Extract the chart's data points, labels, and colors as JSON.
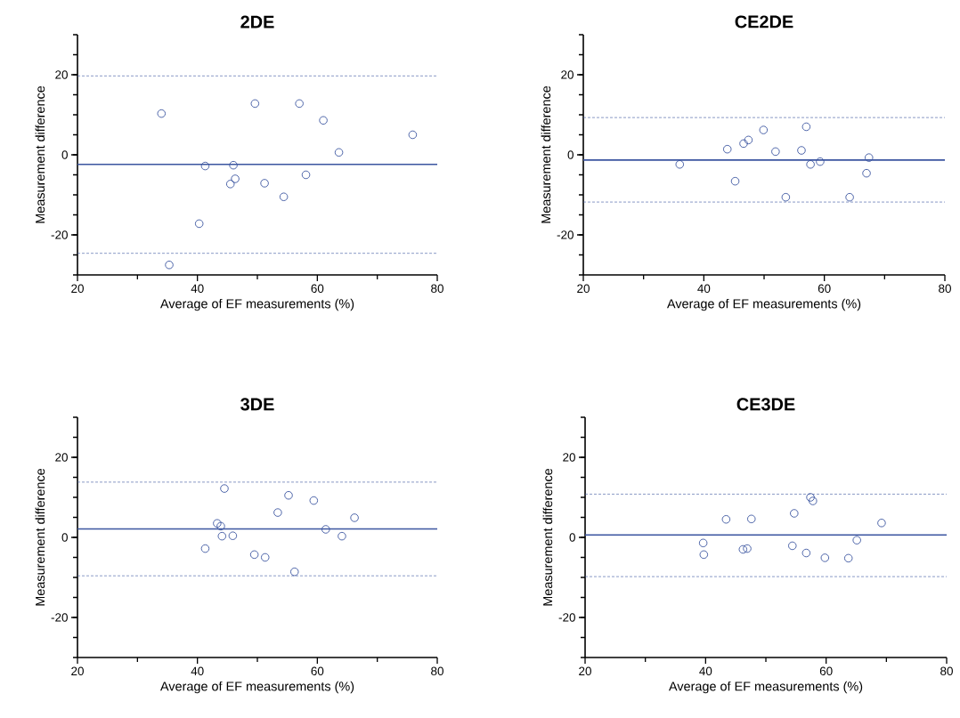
{
  "chart_data": [
    {
      "type": "scatter",
      "title": "2DE",
      "xlabel": "Average of EF measurements (%)",
      "ylabel": "Measurement difference",
      "color": "#3b55a0",
      "marker": "circle",
      "xlim": [
        20,
        80
      ],
      "ylim": [
        -30,
        30
      ],
      "xticks": [
        20,
        40,
        60,
        80
      ],
      "yticks": [
        -20,
        0,
        20
      ],
      "x": [
        34,
        35.3,
        40.3,
        41.3,
        45.5,
        46,
        46.3,
        49.6,
        51.2,
        54.4,
        57,
        58.1,
        61,
        63.6,
        75.9
      ],
      "values": [
        10.3,
        -27.5,
        -17.2,
        -2.8,
        -7.3,
        -2.6,
        -6,
        12.8,
        -7.1,
        -10.5,
        12.8,
        -5,
        8.6,
        0.6,
        5
      ],
      "ref_lines": [
        {
          "axis": "y",
          "value": -2.4,
          "color": "#3b55a0",
          "line_style": "solid"
        },
        {
          "axis": "y",
          "value": 19.7,
          "color": "#3b55a0",
          "line_style": "dashed"
        },
        {
          "axis": "y",
          "value": -24.6,
          "color": "#3b55a0",
          "line_style": "dashed"
        }
      ]
    },
    {
      "type": "scatter",
      "title": "CE2DE",
      "xlabel": "Average of EF measurements (%)",
      "ylabel": "Measurement difference",
      "color": "#3b55a0",
      "marker": "circle",
      "xlim": [
        20,
        80
      ],
      "ylim": [
        -30,
        30
      ],
      "xticks": [
        20,
        40,
        60,
        80
      ],
      "yticks": [
        -20,
        0,
        20
      ],
      "x": [
        36,
        43.9,
        45.2,
        46.6,
        47.4,
        49.9,
        51.9,
        53.6,
        56.2,
        57,
        57.7,
        59.3,
        64.2,
        67,
        67.4
      ],
      "values": [
        -2.4,
        1.4,
        -6.6,
        2.8,
        3.7,
        6.2,
        0.8,
        -10.6,
        1.1,
        7,
        -2.4,
        -1.7,
        -10.6,
        -4.6,
        -0.7
      ],
      "ref_lines": [
        {
          "axis": "y",
          "value": -1.3,
          "color": "#3b55a0",
          "line_style": "solid"
        },
        {
          "axis": "y",
          "value": 9.3,
          "color": "#3b55a0",
          "line_style": "dashed"
        },
        {
          "axis": "y",
          "value": -11.8,
          "color": "#3b55a0",
          "line_style": "dashed"
        }
      ]
    },
    {
      "type": "scatter",
      "title": "3DE",
      "xlabel": "Average of EF measurements (%)",
      "ylabel": "Measurement difference",
      "color": "#3b55a0",
      "marker": "circle",
      "xlim": [
        20,
        80
      ],
      "ylim": [
        -30,
        30
      ],
      "xticks": [
        20,
        40,
        60,
        80
      ],
      "yticks": [
        -20,
        0,
        20
      ],
      "x": [
        41.3,
        43.3,
        43.9,
        44.1,
        44.5,
        45.9,
        49.5,
        51.3,
        53.4,
        55.2,
        56.2,
        59.4,
        61.4,
        64.1,
        66.2
      ],
      "values": [
        -2.8,
        3.5,
        2.8,
        0.3,
        12.2,
        0.4,
        -4.3,
        -5,
        6.2,
        10.5,
        -8.6,
        9.2,
        2,
        0.3,
        4.9
      ],
      "ref_lines": [
        {
          "axis": "y",
          "value": 2.1,
          "color": "#3b55a0",
          "line_style": "solid"
        },
        {
          "axis": "y",
          "value": 13.8,
          "color": "#3b55a0",
          "line_style": "dashed"
        },
        {
          "axis": "y",
          "value": -9.6,
          "color": "#3b55a0",
          "line_style": "dashed"
        }
      ]
    },
    {
      "type": "scatter",
      "title": "CE3DE",
      "xlabel": "Average of EF measurements (%)",
      "ylabel": "Measurement difference",
      "color": "#3b55a0",
      "marker": "circle",
      "xlim": [
        20,
        80
      ],
      "ylim": [
        -30,
        30
      ],
      "xticks": [
        20,
        40,
        60,
        80
      ],
      "yticks": [
        -20,
        0,
        20
      ],
      "x": [
        39.6,
        39.7,
        43.4,
        46.2,
        46.9,
        47.6,
        54.4,
        54.7,
        56.7,
        57.4,
        57.8,
        59.8,
        63.7,
        65.1,
        69.2
      ],
      "values": [
        -1.4,
        -4.3,
        4.5,
        -3,
        -2.8,
        4.6,
        -2.1,
        6,
        -3.9,
        10,
        9.1,
        -5.1,
        -5.2,
        -0.7,
        3.6
      ],
      "ref_lines": [
        {
          "axis": "y",
          "value": 0.6,
          "color": "#3b55a0",
          "line_style": "solid"
        },
        {
          "axis": "y",
          "value": 10.8,
          "color": "#3b55a0",
          "line_style": "dashed"
        },
        {
          "axis": "y",
          "value": -9.8,
          "color": "#3b55a0",
          "line_style": "dashed"
        }
      ]
    }
  ]
}
